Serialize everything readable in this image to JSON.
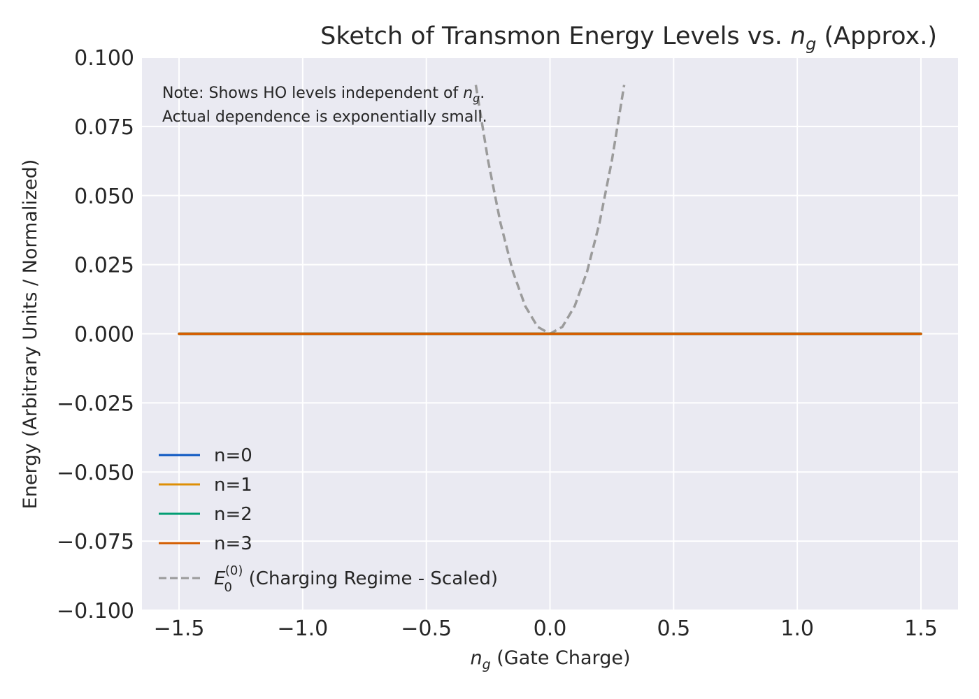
{
  "chart_data": {
    "type": "line",
    "title": {
      "main": "Sketch of Transmon Energy Levels vs. ",
      "var": "n",
      "sub": "g",
      "tail": " (Approx.)"
    },
    "xlabel": {
      "var": "n",
      "sub": "g",
      "tail": " (Gate Charge)"
    },
    "ylabel": "Energy (Arbitrary Units / Normalized)",
    "xlim": [
      -1.65,
      1.65
    ],
    "ylim": [
      -0.1,
      0.1
    ],
    "xticks": [
      -1.5,
      -1.0,
      -0.5,
      0.0,
      0.5,
      1.0,
      1.5
    ],
    "xtick_labels": [
      "−1.5",
      "−1.0",
      "−0.5",
      "0.0",
      "0.5",
      "1.0",
      "1.5"
    ],
    "yticks": [
      0.1,
      0.075,
      0.05,
      0.025,
      0.0,
      -0.025,
      -0.05,
      -0.075,
      -0.1
    ],
    "ytick_labels": [
      "0.100",
      "0.075",
      "0.050",
      "0.025",
      "0.000",
      "−0.025",
      "−0.050",
      "−0.075",
      "−0.100"
    ],
    "grid": true,
    "legend_position": "lower-left",
    "note": {
      "line1_pre": "Note: Shows HO levels independent of ",
      "line1_var": "n",
      "line1_sub": "g",
      "line1_post": ".",
      "line2": "Actual dependence is exponentially small."
    },
    "series": [
      {
        "name": "n=0",
        "color": "#0b56c2",
        "style": "solid",
        "x": [
          -1.5,
          1.5
        ],
        "y": [
          0.0,
          0.0
        ]
      },
      {
        "name": "n=1",
        "color": "#de8f05",
        "style": "solid",
        "x": [
          -1.5,
          1.5
        ],
        "y": [
          0.0,
          0.0
        ]
      },
      {
        "name": "n=2",
        "color": "#029e73",
        "style": "solid",
        "x": [
          -1.5,
          1.5
        ],
        "y": [
          0.0,
          0.0
        ]
      },
      {
        "name": "n=3",
        "color": "#d55e00",
        "style": "solid",
        "x": [
          -1.5,
          1.5
        ],
        "y": [
          0.0,
          0.0
        ]
      },
      {
        "name": {
          "var": "E",
          "sub": "0",
          "sup": "(0)",
          "tail": " (Charging Regime - Scaled)"
        },
        "color": "#9b9b9b",
        "style": "dashed",
        "x": [
          -0.3,
          -0.25,
          -0.2,
          -0.15,
          -0.1,
          -0.05,
          0.0,
          0.05,
          0.1,
          0.15,
          0.2,
          0.25,
          0.3
        ],
        "y": [
          0.09,
          0.0625,
          0.04,
          0.0225,
          0.01,
          0.0025,
          0.0,
          0.0025,
          0.01,
          0.0225,
          0.04,
          0.0625,
          0.09
        ]
      }
    ],
    "colors": {
      "background": "#eaeaf2",
      "grid": "#ffffff",
      "text": "#262626"
    }
  }
}
